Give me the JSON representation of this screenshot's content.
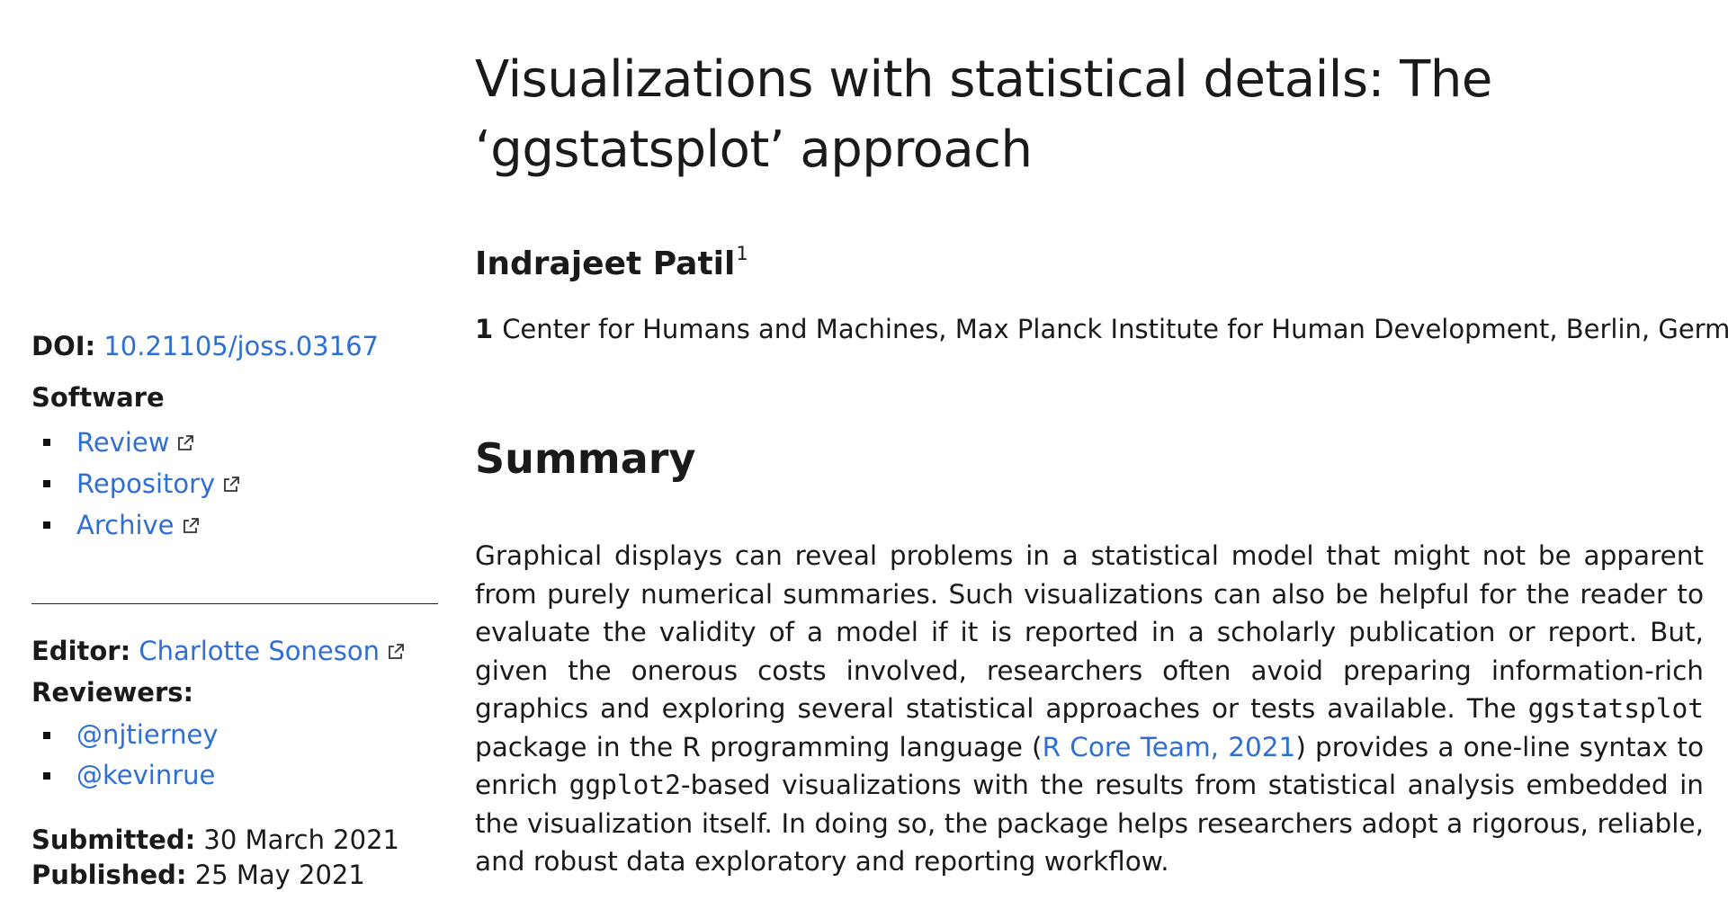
{
  "sidebar": {
    "doi_label": "DOI:",
    "doi_value": "10.21105/joss.03167",
    "software_heading": "Software",
    "software_links": [
      {
        "label": "Review"
      },
      {
        "label": "Repository"
      },
      {
        "label": "Archive"
      }
    ],
    "editor_label": "Editor:",
    "editor_name": "Charlotte Soneson",
    "reviewers_heading": "Reviewers:",
    "reviewers": [
      {
        "handle": "@njtierney"
      },
      {
        "handle": "@kevinrue"
      }
    ],
    "submitted_label": "Submitted:",
    "submitted_date": "30 March 2021",
    "published_label": "Published:",
    "published_date": "25 May 2021"
  },
  "paper": {
    "title": "Visualizations with statistical details: The ‘ggstatsplot’ approach",
    "author": "Indrajeet Patil",
    "author_affil_mark": "1",
    "affiliation_number": "1",
    "affiliation_text": "Center for Humans and Machines, Max Planck Institute for Human Development, Berlin, Germany",
    "summary_heading": "Summary",
    "summary": {
      "part1": "Graphical displays can reveal problems in a statistical model that might not be apparent from purely numerical summaries. Such visualizations can also be helpful for the reader to evaluate the validity of a model if it is reported in a scholarly publication or report. But, given the onerous costs involved, researchers often avoid preparing information-rich graphics and exploring several statistical approaches or tests available. The ",
      "code1": "ggstatsplot",
      "part2": " package in the R programming language (",
      "citation": "R Core Team, 2021",
      "part3": ") provides a one-line syntax to enrich ",
      "code2": "ggplot2",
      "part4": "-based visualizations with the results from statistical analysis embedded in the visualization itself. In doing so, the package helps researchers adopt a rigorous, reliable, and robust data exploratory and reporting workflow."
    }
  },
  "colors": {
    "link": "#2f6fd1",
    "text": "#1a1a1a"
  },
  "icons": {
    "external_link": "external-link-icon",
    "bullet": "square-bullet"
  }
}
